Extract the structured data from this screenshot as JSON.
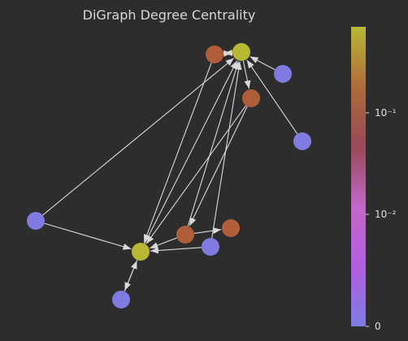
{
  "title": "DiGraph Degree Centrality",
  "colors": {
    "background": "#2d2d2d",
    "edge": "#d9d9d9",
    "high": "#b8b835",
    "mid": "#b05e3a",
    "low": "#7f7be0"
  },
  "colorbar": {
    "scale": "symlog",
    "gradient": [
      "#7f7be0",
      "#b25ee0",
      "#c467c8",
      "#9a4858",
      "#b06a3a",
      "#b8b835"
    ],
    "ticks": [
      {
        "label": "0",
        "value": 0
      },
      {
        "label": "10⁻²",
        "value": 0.01
      },
      {
        "label": "10⁻¹",
        "value": 0.1
      }
    ]
  },
  "graph": {
    "nodes": [
      {
        "id": "A",
        "level": "high"
      },
      {
        "id": "B",
        "level": "mid"
      },
      {
        "id": "C",
        "level": "low"
      },
      {
        "id": "D",
        "level": "mid"
      },
      {
        "id": "E",
        "level": "low"
      },
      {
        "id": "F",
        "level": "low"
      },
      {
        "id": "G",
        "level": "high"
      },
      {
        "id": "H",
        "level": "mid"
      },
      {
        "id": "I",
        "level": "mid"
      },
      {
        "id": "J",
        "level": "low"
      },
      {
        "id": "K",
        "level": "low"
      }
    ],
    "edges": [
      {
        "source": "B",
        "target": "A"
      },
      {
        "source": "A",
        "target": "B"
      },
      {
        "source": "C",
        "target": "A"
      },
      {
        "source": "E",
        "target": "A"
      },
      {
        "source": "A",
        "target": "D"
      },
      {
        "source": "F",
        "target": "A"
      },
      {
        "source": "F",
        "target": "G"
      },
      {
        "source": "B",
        "target": "G"
      },
      {
        "source": "D",
        "target": "G"
      },
      {
        "source": "D",
        "target": "H"
      },
      {
        "source": "G",
        "target": "A"
      },
      {
        "source": "H",
        "target": "A"
      },
      {
        "source": "J",
        "target": "A"
      },
      {
        "source": "J",
        "target": "G"
      },
      {
        "source": "H",
        "target": "G"
      },
      {
        "source": "H",
        "target": "I"
      },
      {
        "source": "K",
        "target": "G"
      },
      {
        "source": "G",
        "target": "K"
      }
    ]
  }
}
